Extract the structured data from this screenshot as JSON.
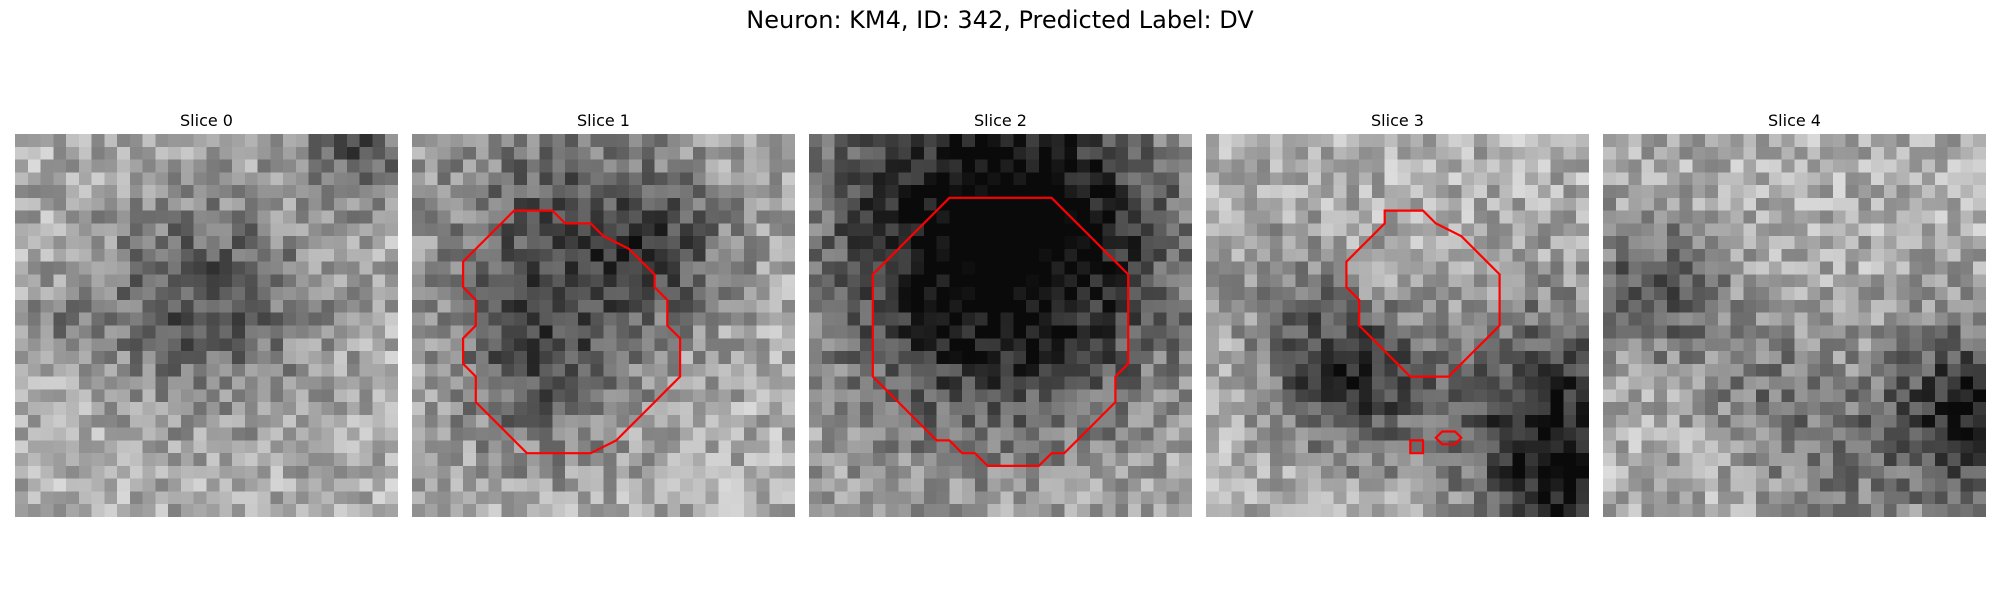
{
  "figure": {
    "title": "Neuron: KM4, ID: 342, Predicted Label: DV",
    "contour_color": "#ff0000",
    "panels": [
      {
        "title": "Slice 0",
        "texture_seed": 11,
        "dark_blobs": [
          {
            "cx": 15,
            "cy": 13,
            "r": 6,
            "strength": 95
          },
          {
            "cx": 27,
            "cy": 1,
            "r": 3,
            "strength": 90
          },
          {
            "cx": 4,
            "cy": 15,
            "r": 2,
            "strength": 50
          }
        ],
        "contours": []
      },
      {
        "title": "Slice 1",
        "texture_seed": 23,
        "dark_blobs": [
          {
            "cx": 12,
            "cy": 8,
            "r": 7,
            "strength": 90
          },
          {
            "cx": 10,
            "cy": 19,
            "r": 5,
            "strength": 70
          },
          {
            "cx": 20,
            "cy": 9,
            "r": 4,
            "strength": 60
          }
        ],
        "contours": [
          [
            [
              8,
              6
            ],
            [
              11,
              6
            ],
            [
              12,
              7
            ],
            [
              14,
              7
            ],
            [
              15,
              8
            ],
            [
              17,
              9
            ],
            [
              18,
              10
            ],
            [
              19,
              11
            ],
            [
              19,
              12
            ],
            [
              20,
              13
            ],
            [
              20,
              15
            ],
            [
              21,
              16
            ],
            [
              21,
              19
            ],
            [
              20,
              20
            ],
            [
              19,
              21
            ],
            [
              18,
              22
            ],
            [
              17,
              23
            ],
            [
              16,
              24
            ],
            [
              14,
              25
            ],
            [
              9,
              25
            ],
            [
              8,
              24
            ],
            [
              7,
              23
            ],
            [
              6,
              22
            ],
            [
              5,
              21
            ],
            [
              5,
              19
            ],
            [
              4,
              18
            ],
            [
              4,
              16
            ],
            [
              5,
              15
            ],
            [
              5,
              13
            ],
            [
              4,
              12
            ],
            [
              4,
              10
            ],
            [
              5,
              9
            ],
            [
              6,
              8
            ],
            [
              7,
              7
            ]
          ]
        ]
      },
      {
        "title": "Slice 2",
        "texture_seed": 37,
        "dark_blobs": [
          {
            "cx": 15,
            "cy": 10,
            "r": 10,
            "strength": 140
          },
          {
            "cx": 15,
            "cy": 6,
            "r": 8,
            "strength": 80
          }
        ],
        "contours": [
          [
            [
              11,
              5
            ],
            [
              19,
              5
            ],
            [
              20,
              6
            ],
            [
              21,
              7
            ],
            [
              22,
              8
            ],
            [
              23,
              9
            ],
            [
              24,
              10
            ],
            [
              25,
              11
            ],
            [
              25,
              18
            ],
            [
              24,
              19
            ],
            [
              24,
              21
            ],
            [
              23,
              22
            ],
            [
              22,
              23
            ],
            [
              21,
              24
            ],
            [
              20,
              25
            ],
            [
              19,
              25
            ],
            [
              18,
              26
            ],
            [
              14,
              26
            ],
            [
              13,
              25
            ],
            [
              12,
              25
            ],
            [
              11,
              24
            ],
            [
              10,
              24
            ],
            [
              9,
              23
            ],
            [
              8,
              22
            ],
            [
              7,
              21
            ],
            [
              6,
              20
            ],
            [
              5,
              19
            ],
            [
              5,
              11
            ],
            [
              6,
              10
            ],
            [
              7,
              9
            ],
            [
              8,
              8
            ],
            [
              9,
              7
            ],
            [
              10,
              6
            ]
          ]
        ]
      },
      {
        "title": "Slice 3",
        "texture_seed": 51,
        "dark_blobs": [
          {
            "cx": 11,
            "cy": 19,
            "r": 4,
            "strength": 140
          },
          {
            "cx": 27,
            "cy": 22,
            "r": 6,
            "strength": 130
          },
          {
            "cx": 29,
            "cy": 29,
            "r": 4,
            "strength": 90
          },
          {
            "cx": 6,
            "cy": 12,
            "r": 3,
            "strength": 40
          }
        ],
        "contours": [
          [
            [
              14,
              6
            ],
            [
              17,
              6
            ],
            [
              18,
              7
            ],
            [
              20,
              8
            ],
            [
              21,
              9
            ],
            [
              22,
              10
            ],
            [
              23,
              11
            ],
            [
              23,
              15
            ],
            [
              22,
              16
            ],
            [
              21,
              17
            ],
            [
              20,
              18
            ],
            [
              19,
              19
            ],
            [
              20,
              18
            ],
            [
              19,
              19
            ],
            [
              18,
              19
            ],
            [
              17,
              19
            ],
            [
              16,
              19
            ],
            [
              15,
              18
            ],
            [
              14,
              17
            ],
            [
              13,
              16
            ],
            [
              12,
              15
            ],
            [
              12,
              13
            ],
            [
              11,
              12
            ],
            [
              11,
              10
            ],
            [
              12,
              9
            ],
            [
              13,
              8
            ],
            [
              14,
              7
            ]
          ],
          [
            [
              16,
              24
            ],
            [
              17,
              24
            ],
            [
              17,
              25
            ],
            [
              16,
              25
            ]
          ],
          [
            [
              18.5,
              23.3
            ],
            [
              19.5,
              23.3
            ],
            [
              20,
              23.8
            ],
            [
              19.5,
              24.3
            ],
            [
              18.5,
              24.3
            ],
            [
              18,
              23.8
            ]
          ]
        ]
      },
      {
        "title": "Slice 4",
        "texture_seed": 67,
        "dark_blobs": [
          {
            "cx": 4,
            "cy": 12,
            "r": 4,
            "strength": 90
          },
          {
            "cx": 29,
            "cy": 22,
            "r": 5,
            "strength": 150
          },
          {
            "cx": 13,
            "cy": 20,
            "r": 4,
            "strength": 50
          },
          {
            "cx": 18,
            "cy": 26,
            "r": 4,
            "strength": 40
          }
        ],
        "contours": []
      }
    ]
  }
}
